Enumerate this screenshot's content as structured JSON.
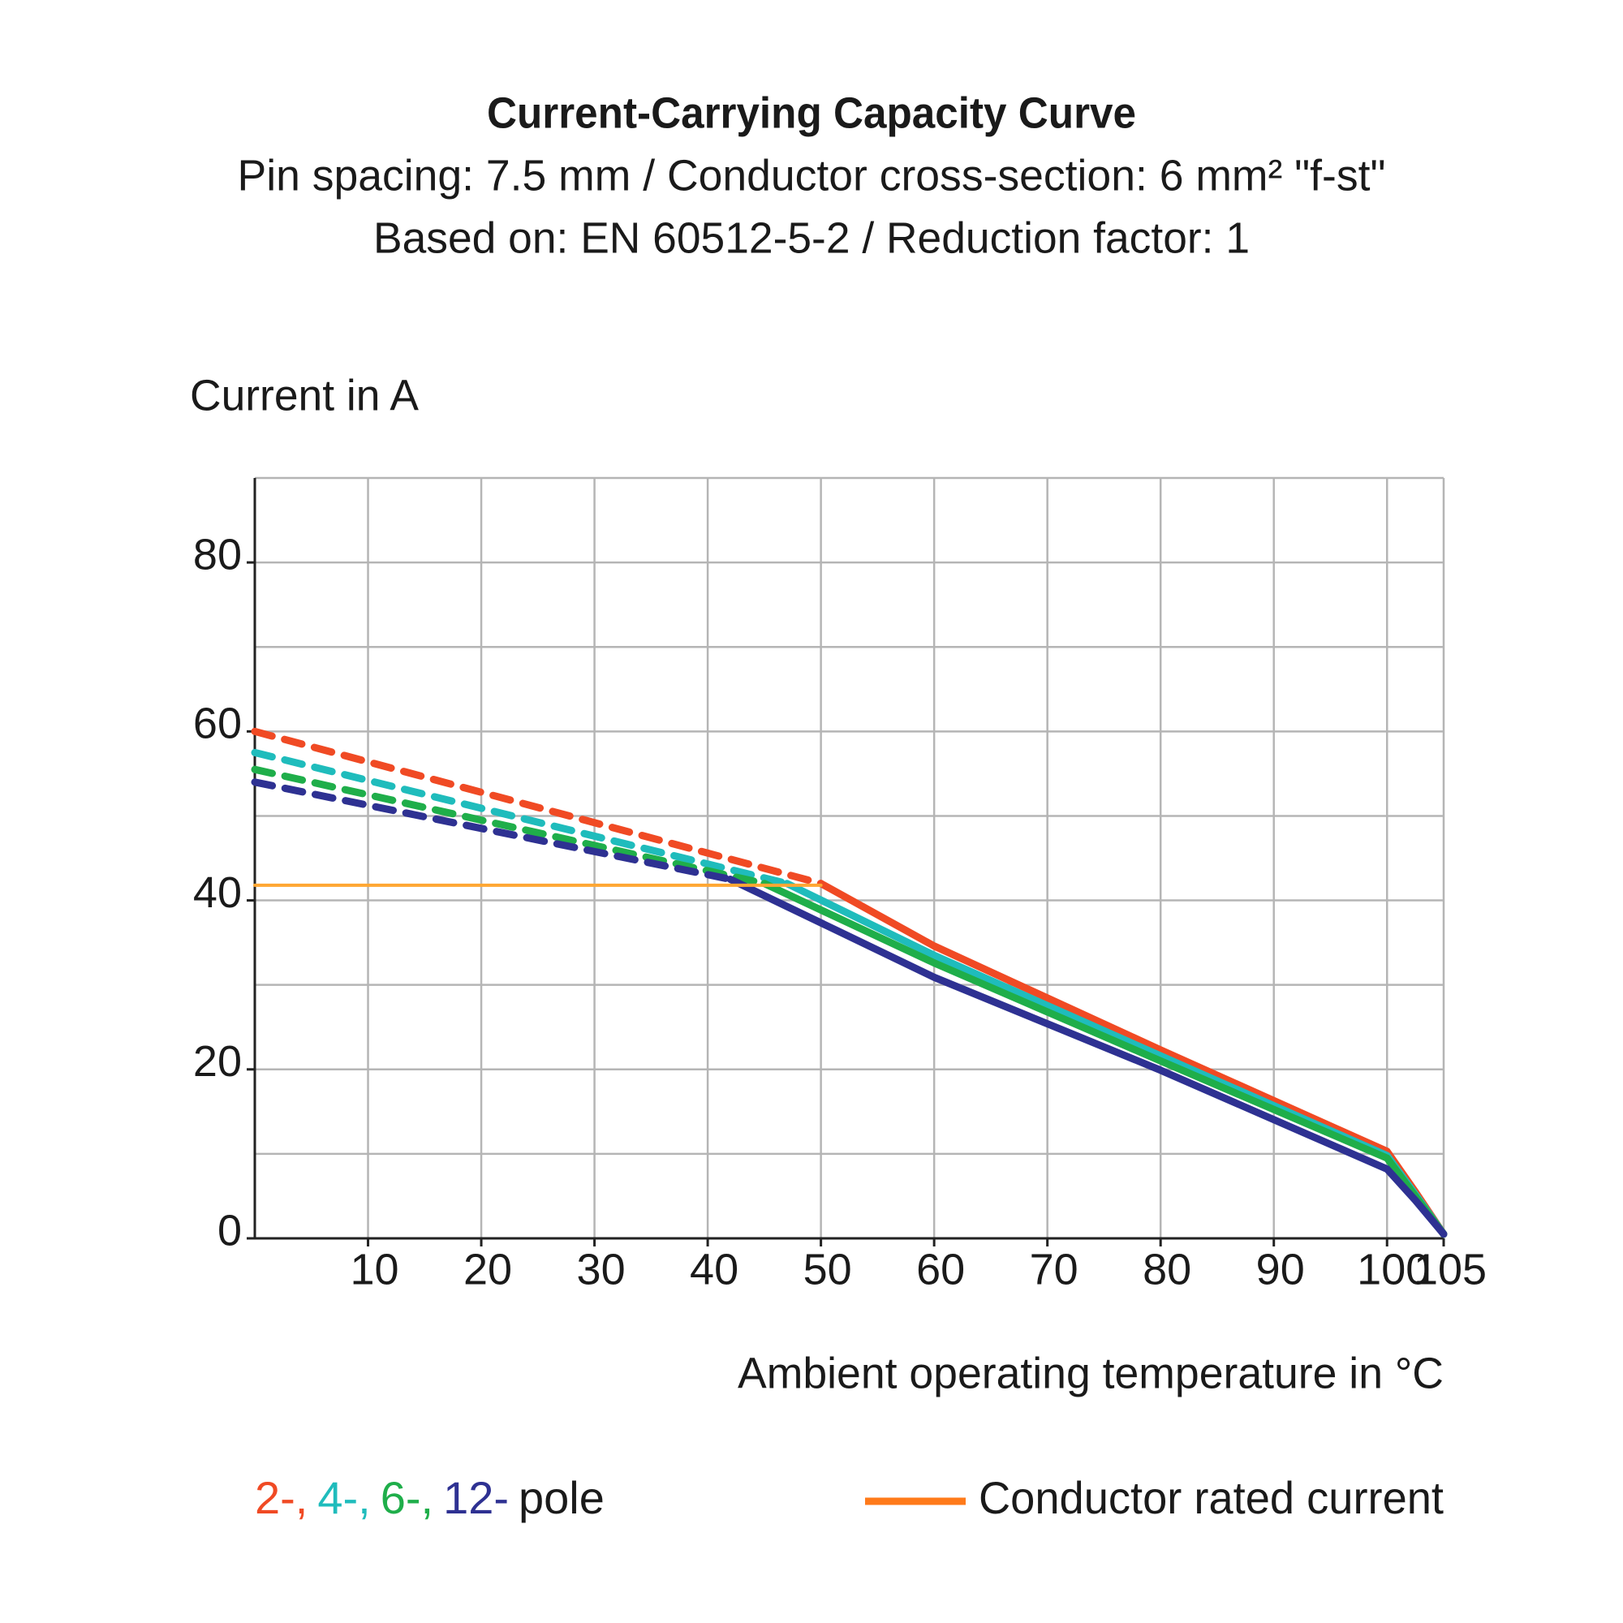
{
  "chart_data": {
    "type": "line",
    "title": "Current-Carrying Capacity Curve",
    "subtitle": "Pin spacing: 7.5 mm / Conductor cross-section: 6 mm² \"f-st\"",
    "subtitle2": "Based on: EN 60512-5-2 / Reduction factor: 1",
    "y_label": "Current in A",
    "x_label": "Ambient operating temperature in °C",
    "xlim": [
      0,
      105
    ],
    "ylim": [
      0,
      90
    ],
    "xticks": [
      10,
      20,
      30,
      40,
      50,
      60,
      70,
      80,
      90,
      100,
      105
    ],
    "yticks": [
      0,
      20,
      40,
      60,
      80
    ],
    "yminor": [
      10,
      30,
      50,
      70
    ],
    "grid": true,
    "legend_suffix": "pole",
    "series": [
      {
        "name": "2-,",
        "color": "#f04a24",
        "segments": [
          {
            "style": "dashed",
            "x": [
              0,
              50
            ],
            "values": [
              60,
              42
            ]
          },
          {
            "style": "solid",
            "x": [
              50,
              60,
              80,
              100,
              102.5,
              105
            ],
            "values": [
              42,
              34.6,
              22.3,
              10.3,
              5.5,
              0.5
            ]
          }
        ]
      },
      {
        "name": "4-,",
        "color": "#1fbcbc",
        "segments": [
          {
            "style": "dashed",
            "x": [
              0,
              47
            ],
            "values": [
              57.5,
              42
            ]
          },
          {
            "style": "solid",
            "x": [
              47,
              60,
              80,
              100,
              102.5,
              105
            ],
            "values": [
              42,
              33.5,
              21.6,
              9.8,
              5.2,
              0.5
            ]
          }
        ]
      },
      {
        "name": "6-,",
        "color": "#1fae4a",
        "segments": [
          {
            "style": "dashed",
            "x": [
              0,
              45
            ],
            "values": [
              55.5,
              42
            ]
          },
          {
            "style": "solid",
            "x": [
              45,
              60,
              80,
              100,
              102.5,
              105
            ],
            "values": [
              42,
              32.6,
              21,
              9.5,
              5,
              0.5
            ]
          }
        ]
      },
      {
        "name": "12-",
        "color": "#2e3192",
        "segments": [
          {
            "style": "dashed",
            "x": [
              0,
              42
            ],
            "values": [
              54,
              42.5
            ]
          },
          {
            "style": "solid",
            "x": [
              42,
              60,
              80,
              100,
              102.5,
              105
            ],
            "values": [
              42.5,
              30.9,
              19.9,
              8.2,
              4.5,
              0.5
            ]
          }
        ]
      },
      {
        "name": "Conductor rated current",
        "color": "#ffa733",
        "legend_color": "#ff7a1a",
        "segments": [
          {
            "style": "solid",
            "x": [
              0,
              50
            ],
            "values": [
              41.8,
              41.8
            ]
          }
        ]
      }
    ]
  }
}
